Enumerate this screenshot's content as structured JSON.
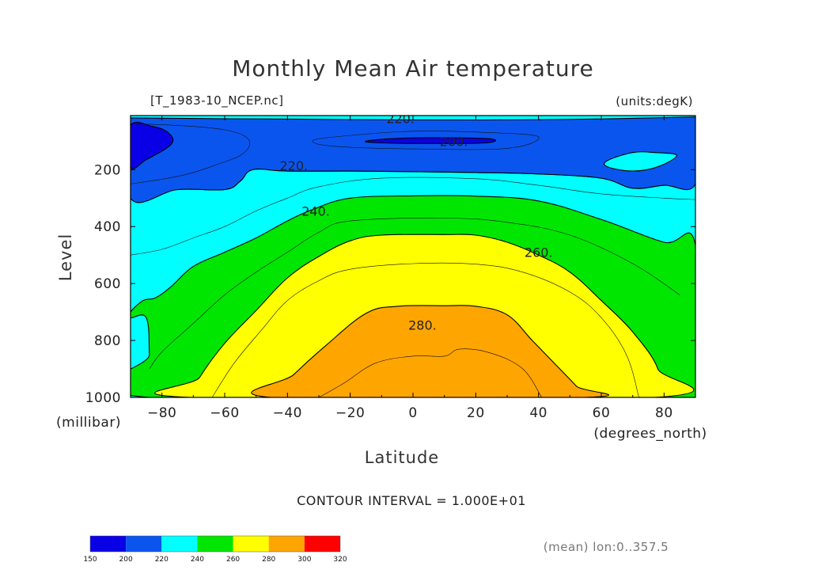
{
  "chart_data": {
    "type": "filled-contour",
    "title": "Monthly Mean Air temperature",
    "file_label": "[T_1983-10_NCEP.nc]",
    "units_label": "(units:degK)",
    "xlabel": "Latitude",
    "x_units": "(degrees_north)",
    "ylabel": "Level",
    "y_units": "(millibar)",
    "xlim": [
      -90,
      90
    ],
    "ylim": [
      1000,
      10
    ],
    "x_ticks": [
      -80,
      -60,
      -40,
      -20,
      0,
      20,
      40,
      60,
      80
    ],
    "x_tick_labels": [
      "−80",
      "−60",
      "−40",
      "−20",
      "0",
      "20",
      "40",
      "60",
      "80"
    ],
    "y_ticks": [
      200,
      400,
      600,
      800,
      1000
    ],
    "y_tick_labels": [
      "200",
      "400",
      "600",
      "800",
      "1000"
    ],
    "contour_interval_text": "CONTOUR INTERVAL = 1.000E+01",
    "contour_labels": [
      {
        "text": "220.",
        "lat": -4,
        "lev": 20
      },
      {
        "text": "200.",
        "lat": 13,
        "lev": 100
      },
      {
        "text": "220.",
        "lat": -38,
        "lev": 185
      },
      {
        "text": "240.",
        "lat": -31,
        "lev": 345
      },
      {
        "text": "260.",
        "lat": 40,
        "lev": 490
      },
      {
        "text": "280.",
        "lat": 3,
        "lev": 745
      }
    ],
    "levels": [
      150,
      200,
      220,
      240,
      260,
      280,
      300,
      320
    ],
    "level_colors": [
      "#0a00e6",
      "#0a55ee",
      "#00ffff",
      "#00e600",
      "#ffff00",
      "#ffa500",
      "#ff0000"
    ],
    "fill_regions": [
      {
        "range": "220-240",
        "color": "#00ffff",
        "points": [
          [
            -90,
            300
          ],
          [
            -75,
            270
          ],
          [
            -60,
            270
          ],
          [
            -55,
            240
          ],
          [
            -51,
            200
          ],
          [
            -40,
            205
          ],
          [
            -20,
            205
          ],
          [
            0,
            207
          ],
          [
            20,
            210
          ],
          [
            40,
            215
          ],
          [
            60,
            230
          ],
          [
            70,
            265
          ],
          [
            80,
            255
          ],
          [
            90,
            250
          ],
          [
            90,
            1000
          ],
          [
            -90,
            1000
          ]
        ]
      },
      {
        "range": "240-260",
        "color": "#00e600",
        "points": [
          [
            -90,
            700
          ],
          [
            -86,
            660
          ],
          [
            -82,
            650
          ],
          [
            -77,
            610
          ],
          [
            -70,
            540
          ],
          [
            -60,
            490
          ],
          [
            -50,
            440
          ],
          [
            -40,
            380
          ],
          [
            -32,
            340
          ],
          [
            -20,
            300
          ],
          [
            0,
            292
          ],
          [
            20,
            293
          ],
          [
            40,
            310
          ],
          [
            60,
            375
          ],
          [
            80,
            455
          ],
          [
            90,
            465
          ],
          [
            90,
            1000
          ],
          [
            -84,
            1000
          ],
          [
            -84,
            850
          ],
          [
            -85,
            720
          ],
          [
            -90,
            720
          ]
        ]
      },
      {
        "range": "260-280",
        "color": "#ffff00",
        "points": [
          [
            -71,
            1000
          ],
          [
            -68,
            930
          ],
          [
            -60,
            810
          ],
          [
            -50,
            695
          ],
          [
            -40,
            580
          ],
          [
            -30,
            505
          ],
          [
            -20,
            450
          ],
          [
            -10,
            430
          ],
          [
            10,
            428
          ],
          [
            20,
            430
          ],
          [
            30,
            455
          ],
          [
            40,
            500
          ],
          [
            50,
            560
          ],
          [
            60,
            660
          ],
          [
            70,
            770
          ],
          [
            78,
            900
          ],
          [
            77,
            1000
          ]
        ]
      },
      {
        "range": "280-290",
        "color": "#ffa500",
        "points": [
          [
            -45,
            1000
          ],
          [
            -38,
            920
          ],
          [
            -28,
            820
          ],
          [
            -15,
            705
          ],
          [
            -5,
            680
          ],
          [
            10,
            678
          ],
          [
            20,
            680
          ],
          [
            30,
            710
          ],
          [
            38,
            800
          ],
          [
            45,
            880
          ],
          [
            52,
            960
          ],
          [
            55,
            1000
          ]
        ]
      },
      {
        "range": "200-220",
        "color": "#0a55ee",
        "points": [
          [
            -90,
            10
          ],
          [
            90,
            10
          ],
          [
            90,
            250
          ],
          [
            80,
            255
          ],
          [
            70,
            265
          ],
          [
            60,
            230
          ],
          [
            40,
            215
          ],
          [
            20,
            210
          ],
          [
            0,
            207
          ],
          [
            -20,
            205
          ],
          [
            -40,
            205
          ],
          [
            -51,
            200
          ],
          [
            -55,
            240
          ],
          [
            -60,
            270
          ],
          [
            -75,
            270
          ],
          [
            -90,
            300
          ]
        ]
      },
      {
        "range": "150-200 (south pole)",
        "color": "#0a00e6",
        "points": [
          [
            -90,
            45
          ],
          [
            -83,
            48
          ],
          [
            -78,
            70
          ],
          [
            -77,
            110
          ],
          [
            -85,
            165
          ],
          [
            -90,
            190
          ]
        ]
      },
      {
        "range": "150-200 (tropopause)",
        "color": "#0a00e6",
        "points": [
          [
            -15,
            100
          ],
          [
            -5,
            90
          ],
          [
            10,
            88
          ],
          [
            25,
            92
          ],
          [
            23,
            106
          ],
          [
            5,
            108
          ],
          [
            -10,
            106
          ]
        ]
      },
      {
        "range": "220-240 (pocket)",
        "color": "#00ffff",
        "points": [
          [
            62,
            168
          ],
          [
            70,
            140
          ],
          [
            77,
            140
          ],
          [
            84,
            150
          ],
          [
            78,
            190
          ],
          [
            70,
            205
          ],
          [
            62,
            190
          ]
        ]
      },
      {
        "range": "220-240 (upper strip)",
        "color": "#00ffff",
        "points": [
          [
            -90,
            10
          ],
          [
            90,
            10
          ],
          [
            90,
            15
          ],
          [
            45,
            24
          ],
          [
            0,
            25
          ],
          [
            -45,
            22
          ],
          [
            -90,
            18
          ]
        ]
      }
    ],
    "thin_lines": [
      [
        [
          -90,
          250
        ],
        [
          -78,
          230
        ],
        [
          -70,
          210
        ],
        [
          -62,
          180
        ],
        [
          -55,
          150
        ],
        [
          -52,
          110
        ],
        [
          -54,
          80
        ],
        [
          -60,
          60
        ],
        [
          -70,
          48
        ],
        [
          -85,
          40
        ],
        [
          -90,
          40
        ]
      ],
      [
        [
          -90,
          500
        ],
        [
          -80,
          480
        ],
        [
          -70,
          440
        ],
        [
          -60,
          400
        ],
        [
          -50,
          345
        ],
        [
          -40,
          300
        ],
        [
          -30,
          260
        ],
        [
          -10,
          230
        ],
        [
          20,
          232
        ],
        [
          40,
          255
        ],
        [
          60,
          285
        ],
        [
          80,
          300
        ],
        [
          90,
          305
        ]
      ],
      [
        [
          -84,
          900
        ],
        [
          -80,
          840
        ],
        [
          -70,
          740
        ],
        [
          -60,
          640
        ],
        [
          -50,
          560
        ],
        [
          -40,
          490
        ],
        [
          -30,
          420
        ],
        [
          -20,
          380
        ],
        [
          10,
          370
        ],
        [
          30,
          385
        ],
        [
          50,
          430
        ],
        [
          70,
          530
        ],
        [
          85,
          640
        ]
      ],
      [
        [
          -64,
          1000
        ],
        [
          -57,
          880
        ],
        [
          -48,
          760
        ],
        [
          -40,
          660
        ],
        [
          -30,
          590
        ],
        [
          -20,
          550
        ],
        [
          0,
          530
        ],
        [
          20,
          532
        ],
        [
          35,
          560
        ],
        [
          50,
          630
        ],
        [
          60,
          720
        ],
        [
          68,
          850
        ],
        [
          72,
          1000
        ]
      ],
      [
        [
          -30,
          1000
        ],
        [
          -22,
          950
        ],
        [
          -12,
          880
        ],
        [
          0,
          855
        ],
        [
          10,
          855
        ],
        [
          15,
          830
        ],
        [
          25,
          845
        ],
        [
          35,
          900
        ],
        [
          41,
          1000
        ]
      ],
      [
        [
          -25,
          85
        ],
        [
          0,
          65
        ],
        [
          25,
          70
        ],
        [
          40,
          85
        ],
        [
          30,
          125
        ],
        [
          0,
          127
        ],
        [
          -25,
          118
        ],
        [
          -32,
          100
        ],
        [
          -25,
          85
        ]
      ]
    ],
    "colorbar_levels": [
      "150",
      "200",
      "220",
      "240",
      "260",
      "280",
      "300",
      "320"
    ],
    "mean_note": "(mean) lon:0..357.5"
  }
}
